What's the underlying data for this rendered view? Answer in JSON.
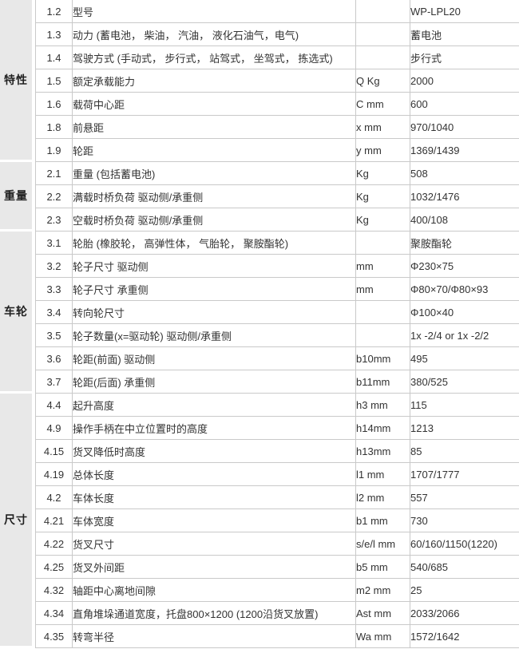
{
  "table": {
    "colors": {
      "group_background": "#e8e8e8",
      "border": "#c9c9c9",
      "text": "#333333"
    },
    "groups": [
      {
        "label": "特性",
        "rows": [
          {
            "num": "1.2",
            "desc": "型号",
            "unit": "",
            "value": "WP-LPL20"
          },
          {
            "num": "1.3",
            "desc": "动力 (蓄电池， 柴油， 汽油， 液化石油气，电气)",
            "unit": "",
            "value": "蓄电池"
          },
          {
            "num": "1.4",
            "desc": "驾驶方式 (手动式， 步行式， 站驾式， 坐驾式， 拣选式)",
            "unit": "",
            "value": "步行式"
          },
          {
            "num": "1.5",
            "desc": "额定承载能力",
            "unit": "Q Kg",
            "value": "2000"
          },
          {
            "num": "1.6",
            "desc": "载荷中心距",
            "unit": "C mm",
            "value": "600"
          },
          {
            "num": "1.8",
            "desc": "前悬距",
            "unit": "x mm",
            "value": "970/1040"
          },
          {
            "num": "1.9",
            "desc": "轮距",
            "unit": "y mm",
            "value": "1369/1439"
          }
        ]
      },
      {
        "label": "重量",
        "rows": [
          {
            "num": "2.1",
            "desc": "重量 (包括蓄电池)",
            "unit": "Kg",
            "value": "508"
          },
          {
            "num": "2.2",
            "desc": "满载时桥负荷 驱动侧/承重侧",
            "unit": "Kg",
            "value": "1032/1476"
          },
          {
            "num": "2.3",
            "desc": "空载时桥负荷 驱动侧/承重侧",
            "unit": "Kg",
            "value": "400/108"
          }
        ]
      },
      {
        "label": "车轮",
        "rows": [
          {
            "num": "3.1",
            "desc": "轮胎 (橡胶轮， 高弹性体， 气胎轮， 聚胺酯轮)",
            "unit": "",
            "value": "聚胺酯轮"
          },
          {
            "num": "3.2",
            "desc": "轮子尺寸 驱动侧",
            "unit": "mm",
            "value": "Φ230×75"
          },
          {
            "num": "3.3",
            "desc": "轮子尺寸 承重侧",
            "unit": "mm",
            "value": "Φ80×70/Φ80×93"
          },
          {
            "num": "3.4",
            "desc": "转向轮尺寸",
            "unit": "",
            "value": "Φ100×40"
          },
          {
            "num": "3.5",
            "desc": "轮子数量(x=驱动轮) 驱动侧/承重侧",
            "unit": "",
            "value": "1x -2/4 or 1x -2/2"
          },
          {
            "num": "3.6",
            "desc": "轮距(前面) 驱动侧",
            "unit": "b10mm",
            "value": "495"
          },
          {
            "num": "3.7",
            "desc": "轮距(后面) 承重侧",
            "unit": "b11mm",
            "value": "380/525"
          }
        ]
      },
      {
        "label": "尺寸",
        "rows": [
          {
            "num": "4.4",
            "desc": "起升高度",
            "unit": "h3 mm",
            "value": "115"
          },
          {
            "num": "4.9",
            "desc": "操作手柄在中立位置时的高度",
            "unit": "h14mm",
            "value": "1213"
          },
          {
            "num": "4.15",
            "desc": "货叉降低时高度",
            "unit": "h13mm",
            "value": "85"
          },
          {
            "num": "4.19",
            "desc": "总体长度",
            "unit": "l1 mm",
            "value": "1707/1777"
          },
          {
            "num": "4.2",
            "desc": "车体长度",
            "unit": "l2 mm",
            "value": "557"
          },
          {
            "num": "4.21",
            "desc": "车体宽度",
            "unit": "b1 mm",
            "value": "730"
          },
          {
            "num": "4.22",
            "desc": "货叉尺寸",
            "unit": "s/e/l mm",
            "value": "60/160/1150(1220)"
          },
          {
            "num": "4.25",
            "desc": "货叉外间距",
            "unit": "b5 mm",
            "value": "540/685"
          },
          {
            "num": "4.32",
            "desc": "轴距中心离地间隙",
            "unit": "m2 mm",
            "value": "25"
          },
          {
            "num": "4.34",
            "desc": "直角堆垛通道宽度，托盘800×1200 (1200沿货叉放置)",
            "unit": "Ast mm",
            "value": "2033/2066"
          },
          {
            "num": "4.35",
            "desc": "转弯半径",
            "unit": "Wa mm",
            "value": "1572/1642"
          }
        ]
      }
    ]
  }
}
